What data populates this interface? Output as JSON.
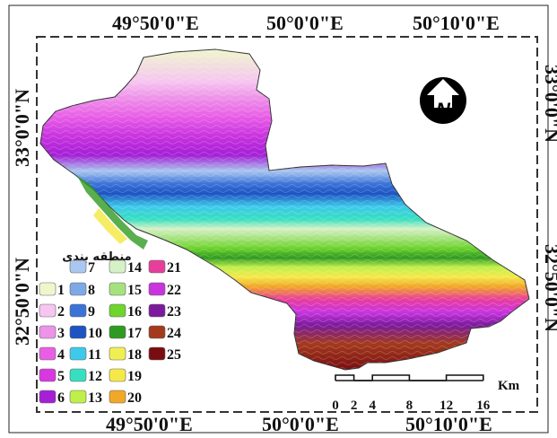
{
  "map": {
    "lon_labels": [
      "49°50'0\"E",
      "50°0'0\"E",
      "50°10'0\"E"
    ],
    "lat_labels": [
      "33°0'0\"N",
      "32°50'0\"N"
    ],
    "north_letter": "N",
    "legend": {
      "title": "منطقه بندی",
      "zones": [
        {
          "id": "1",
          "color": "#eef7cc"
        },
        {
          "id": "2",
          "color": "#f6c6f0"
        },
        {
          "id": "3",
          "color": "#ee93e9"
        },
        {
          "id": "4",
          "color": "#e85fe6"
        },
        {
          "id": "5",
          "color": "#d838e0"
        },
        {
          "id": "6",
          "color": "#a51fd6"
        },
        {
          "id": "7",
          "color": "#a9c7ef"
        },
        {
          "id": "8",
          "color": "#7da9e6"
        },
        {
          "id": "9",
          "color": "#3a72d8"
        },
        {
          "id": "10",
          "color": "#1d54c2"
        },
        {
          "id": "11",
          "color": "#3ec9ea"
        },
        {
          "id": "12",
          "color": "#36dfc0"
        },
        {
          "id": "13",
          "color": "#bff04a"
        },
        {
          "id": "14",
          "color": "#d6f1c7"
        },
        {
          "id": "15",
          "color": "#a5e27d"
        },
        {
          "id": "16",
          "color": "#6fd42c"
        },
        {
          "id": "17",
          "color": "#2f9a22"
        },
        {
          "id": "18",
          "color": "#f0ef52"
        },
        {
          "id": "19",
          "color": "#f5e94a"
        },
        {
          "id": "20",
          "color": "#f1a727"
        },
        {
          "id": "21",
          "color": "#e83e9b"
        },
        {
          "id": "22",
          "color": "#c934df"
        },
        {
          "id": "23",
          "color": "#7c1a9e"
        },
        {
          "id": "24",
          "color": "#a33a1c"
        },
        {
          "id": "25",
          "color": "#7a0d12"
        }
      ]
    },
    "scale": {
      "ticks": [
        "0",
        "2",
        "4",
        "8",
        "12",
        "16"
      ],
      "unit": "Km"
    }
  }
}
